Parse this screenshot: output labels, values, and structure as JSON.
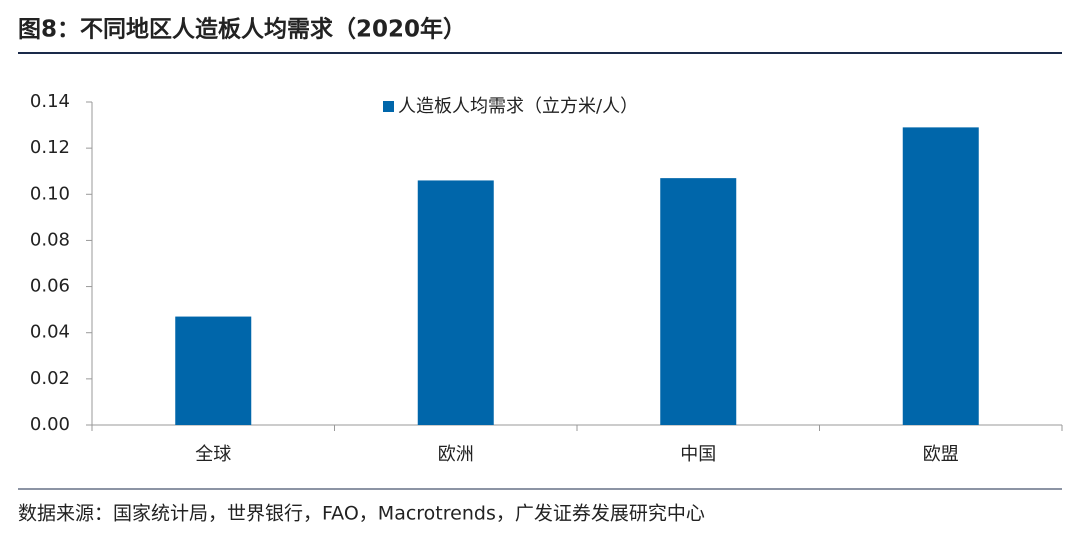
{
  "chart_data": {
    "type": "bar",
    "title": "图8：不同地区人造板人均需求（2020年）",
    "source": "数据来源：国家统计局，世界银行，FAO，Macrotrends，广发证券发展研究中心",
    "categories": [
      "全球",
      "欧洲",
      "中国",
      "欧盟"
    ],
    "series": [
      {
        "name": "人造板人均需求（立方米/人）",
        "color": "#0066aa",
        "values": [
          0.047,
          0.106,
          0.107,
          0.129
        ]
      }
    ],
    "ylim": [
      0,
      0.14
    ],
    "yticks": [
      {
        "value": 0,
        "label": "0.00"
      },
      {
        "value": 0.02,
        "label": "0.02"
      },
      {
        "value": 0.04,
        "label": "0.04"
      },
      {
        "value": 0.06,
        "label": "0.06"
      },
      {
        "value": 0.08,
        "label": "0.08"
      },
      {
        "value": 0.1,
        "label": "0.10"
      },
      {
        "value": 0.12,
        "label": "0.12"
      },
      {
        "value": 0.14,
        "label": "0.14"
      }
    ],
    "legend": "top-center"
  }
}
